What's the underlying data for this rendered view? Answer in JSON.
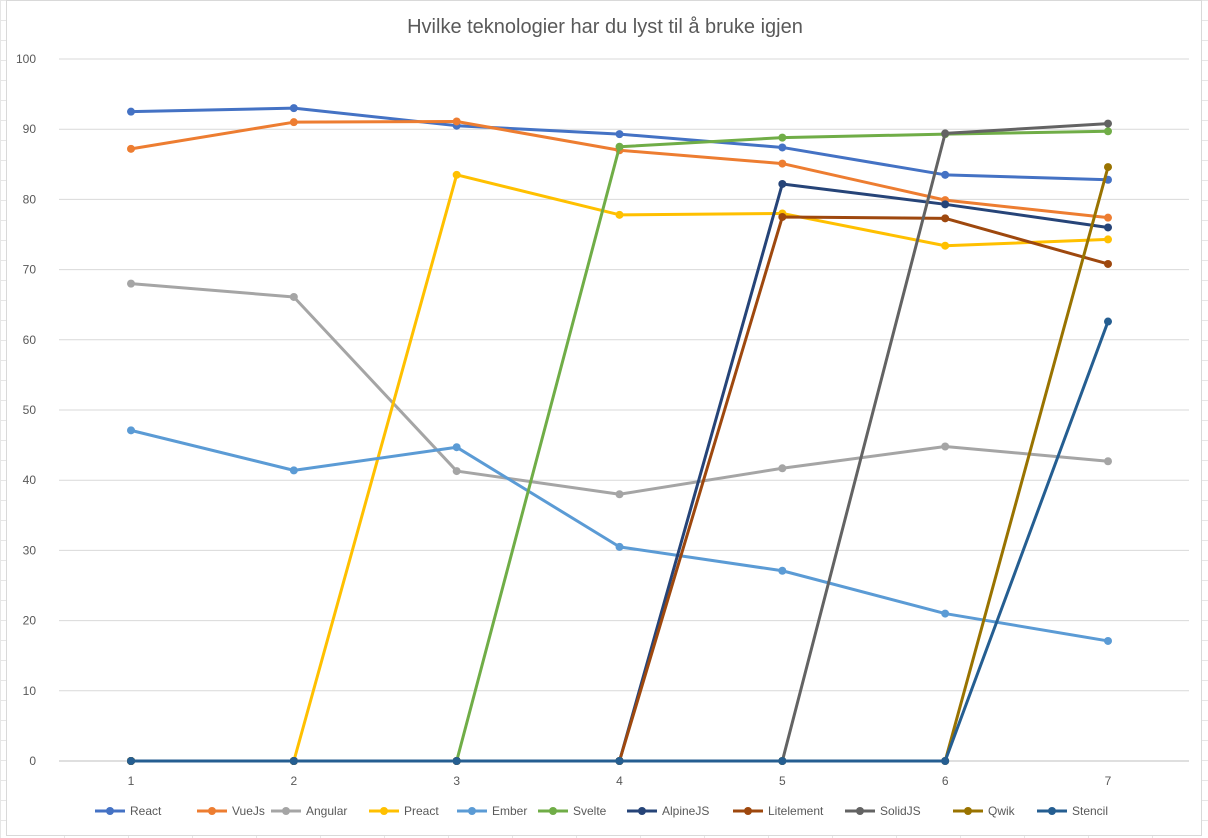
{
  "chart_data": {
    "type": "line",
    "title": "Hvilke teknologier har du lyst til å bruke igjen",
    "xlabel": "",
    "ylabel": "",
    "x": [
      1,
      2,
      3,
      4,
      5,
      6,
      7
    ],
    "ylim": [
      0,
      100
    ],
    "yticks": [
      0,
      10,
      20,
      30,
      40,
      50,
      60,
      70,
      80,
      90,
      100
    ],
    "grid": true,
    "legend_position": "bottom",
    "series": [
      {
        "name": "React",
        "color": "#4472C4",
        "values": [
          92.5,
          93,
          90.5,
          89.3,
          87.4,
          83.5,
          82.8
        ]
      },
      {
        "name": "VueJs",
        "color": "#ED7D31",
        "values": [
          87.2,
          91,
          91.1,
          87,
          85.1,
          79.9,
          77.4
        ]
      },
      {
        "name": "Angular",
        "color": "#A5A5A5",
        "values": [
          68,
          66.1,
          41.3,
          38,
          41.7,
          44.8,
          42.7
        ]
      },
      {
        "name": "Preact",
        "color": "#FFC000",
        "values": [
          0,
          0,
          83.5,
          77.8,
          78,
          73.4,
          74.3
        ]
      },
      {
        "name": "Ember",
        "color": "#5B9BD5",
        "values": [
          47.1,
          41.4,
          44.7,
          30.5,
          27.1,
          21,
          17.1
        ]
      },
      {
        "name": "Svelte",
        "color": "#70AD47",
        "values": [
          0,
          0,
          0,
          87.5,
          88.8,
          89.3,
          89.7
        ]
      },
      {
        "name": "AlpineJS",
        "color": "#264478",
        "values": [
          0,
          0,
          0,
          0,
          82.2,
          79.3,
          76
        ]
      },
      {
        "name": "Litelement",
        "color": "#9E480E",
        "values": [
          0,
          0,
          0,
          0,
          77.5,
          77.3,
          70.8
        ]
      },
      {
        "name": "SolidJS",
        "color": "#636363",
        "values": [
          0,
          0,
          0,
          0,
          0,
          89.4,
          90.8
        ]
      },
      {
        "name": "Qwik",
        "color": "#997300",
        "values": [
          0,
          0,
          0,
          0,
          0,
          0,
          84.6
        ]
      },
      {
        "name": "Stencil",
        "color": "#255E91",
        "values": [
          0,
          0,
          0,
          0,
          0,
          0,
          62.6
        ]
      }
    ]
  }
}
